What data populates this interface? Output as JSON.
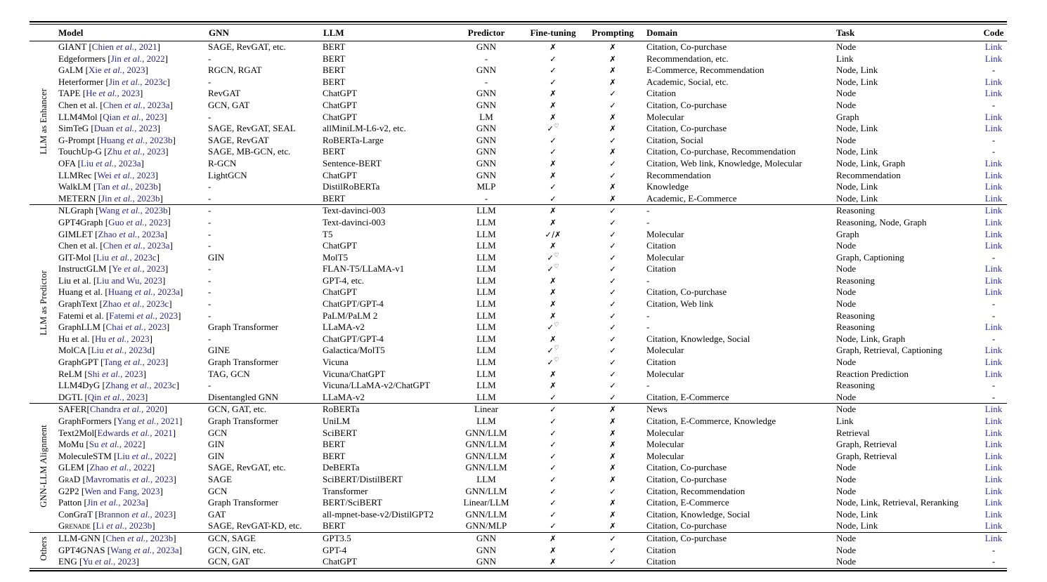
{
  "colors": {
    "citation_text": "#26268E",
    "code_link_text": "#2A2AC8",
    "body_text": "#000000",
    "background": "#ffffff"
  },
  "glyphs": {
    "check": "✓",
    "cross": "✗",
    "heart_superscript": "♡"
  },
  "table": {
    "headers": [
      "Model",
      "GNN",
      "LLM",
      "Predictor",
      "Fine-tuning",
      "Prompting",
      "Domain",
      "Task",
      "Code"
    ],
    "header_align": [
      "l",
      "l",
      "l",
      "c",
      "c",
      "c",
      "l",
      "l",
      "c"
    ],
    "sections": [
      {
        "group": "LLM as Enhancer",
        "rows": [
          {
            "model": "GIANT",
            "cite": "Chien et al., 2021",
            "gnn": "SAGE, RevGAT, etc.",
            "llm": "BERT",
            "predictor": "GNN",
            "fine_tuning": "✗",
            "prompting": "✗",
            "domain": "Citation, Co-purchase",
            "task": "Node",
            "code": "Link"
          },
          {
            "model": "Edgeformers",
            "cite": "Jin et al., 2022",
            "gnn": "-",
            "llm": "BERT",
            "predictor": "-",
            "fine_tuning": "✓",
            "prompting": "✗",
            "domain": "Recommendation, etc.",
            "task": "Link",
            "code": "Link"
          },
          {
            "model": "GaLM",
            "sc": true,
            "cite": "Xie et al., 2023",
            "gnn": "RGCN, RGAT",
            "llm": "BERT",
            "predictor": "GNN",
            "fine_tuning": "✓",
            "prompting": "✗",
            "domain": "E-Commerce, Recommendation",
            "task": "Node, Link",
            "code": "-"
          },
          {
            "model": "Heterformer",
            "cite": "Jin et al., 2023c",
            "gnn": "-",
            "llm": "BERT",
            "predictor": "-",
            "fine_tuning": "✓",
            "prompting": "✗",
            "domain": "Academic, Social, etc.",
            "task": "Node, Link",
            "code": "Link"
          },
          {
            "model": "TAPE",
            "cite": "He et al., 2023",
            "gnn": "RevGAT",
            "llm": "ChatGPT",
            "predictor": "GNN",
            "fine_tuning": "✗",
            "prompting": "✓",
            "domain": "Citation",
            "task": "Node",
            "code": "Link"
          },
          {
            "model": "Chen et al.",
            "cite": "Chen et al., 2023a",
            "gnn": "GCN, GAT",
            "llm": "ChatGPT",
            "predictor": "GNN",
            "fine_tuning": "✗",
            "prompting": "✓",
            "domain": "Citation, Co-purchase",
            "task": "Node",
            "code": "-"
          },
          {
            "model": "LLM4Mol",
            "cite": "Qian et al., 2023",
            "gnn": "-",
            "llm": "ChatGPT",
            "predictor": "LM",
            "fine_tuning": "✗",
            "prompting": "✗",
            "domain": "Molecular",
            "task": "Graph",
            "code": "Link"
          },
          {
            "model": "SimTeG",
            "cite": "Duan et al., 2023",
            "gnn": "SAGE, RevGAT, SEAL",
            "llm": "allMiniLM-L6-v2, etc.",
            "predictor": "GNN",
            "fine_tuning": "✓♡",
            "prompting": "✗",
            "domain": "Citation, Co-purchase",
            "task": "Node, Link",
            "code": "Link"
          },
          {
            "model": "G-Prompt",
            "cite": "Huang et al., 2023b",
            "gnn": "SAGE, RevGAT",
            "llm": "RoBERTa-Large",
            "predictor": "GNN",
            "fine_tuning": "✓",
            "prompting": "✓",
            "domain": "Citation, Social",
            "task": "Node",
            "code": "-"
          },
          {
            "model": "TouchUp-G",
            "cite": "Zhu et al., 2023",
            "gnn": "SAGE, MB-GCN, etc.",
            "llm": "BERT",
            "predictor": "GNN",
            "fine_tuning": "✓",
            "prompting": "✗",
            "domain": "Citation, Co-purchase, Recommendation",
            "task": "Node, Link",
            "code": "-"
          },
          {
            "model": "OFA",
            "cite": "Liu et al., 2023a",
            "gnn": "R-GCN",
            "llm": "Sentence-BERT",
            "predictor": "GNN",
            "fine_tuning": "✗",
            "prompting": "✓",
            "domain": "Citation, Web link, Knowledge, Molecular",
            "task": "Node, Link, Graph",
            "code": "Link"
          },
          {
            "model": "LLMRec",
            "cite": "Wei et al., 2023",
            "gnn": "LightGCN",
            "llm": "ChatGPT",
            "predictor": "GNN",
            "fine_tuning": "✗",
            "prompting": "✓",
            "domain": "Recommendation",
            "task": "Recommendation",
            "code": "Link"
          },
          {
            "model": "WalkLM",
            "cite": "Tan et al., 2023b",
            "gnn": "-",
            "llm": "DistilRoBERTa",
            "predictor": "MLP",
            "fine_tuning": "✓",
            "prompting": "✗",
            "domain": "Knowledge",
            "task": "Node, Link",
            "code": "Link"
          },
          {
            "model": "METERN",
            "cite": "Jin et al., 2023b",
            "gnn": "-",
            "llm": "BERT",
            "predictor": "-",
            "fine_tuning": "✓",
            "prompting": "✗",
            "domain": "Academic, E-Commerce",
            "task": "Node, Link",
            "code": "Link"
          }
        ]
      },
      {
        "group": "LLM as Predictor",
        "rows": [
          {
            "model": "NLGraph",
            "cite": "Wang et al., 2023b",
            "gnn": "-",
            "llm": "Text-davinci-003",
            "predictor": "LLM",
            "fine_tuning": "✗",
            "prompting": "✓",
            "domain": "-",
            "task": "Reasoning",
            "code": "Link"
          },
          {
            "model": "GPT4Graph",
            "cite": "Guo et al., 2023",
            "gnn": "-",
            "llm": "Text-davinci-003",
            "predictor": "LLM",
            "fine_tuning": "✗",
            "prompting": "✓",
            "domain": "-",
            "task": "Reasoning, Node, Graph",
            "code": "Link"
          },
          {
            "model": "GIMLET",
            "cite": "Zhao et al., 2023a",
            "gnn": "-",
            "llm": "T5",
            "predictor": "LLM",
            "fine_tuning": "✓/✗",
            "prompting": "✓",
            "domain": "Molecular",
            "task": "Graph",
            "code": "Link"
          },
          {
            "model": "Chen et al.",
            "cite": "Chen et al., 2023a",
            "gnn": "-",
            "llm": "ChatGPT",
            "predictor": "LLM",
            "fine_tuning": "✗",
            "prompting": "✓",
            "domain": "Citation",
            "task": "Node",
            "code": "Link"
          },
          {
            "model": "GIT-Mol",
            "cite": "Liu et al., 2023c",
            "gnn": "GIN",
            "llm": "MolT5",
            "predictor": "LLM",
            "fine_tuning": "✓♡",
            "prompting": "✓",
            "domain": "Molecular",
            "task": "Graph, Captioning",
            "code": "-"
          },
          {
            "model": "InstructGLM",
            "cite": "Ye et al., 2023",
            "gnn": "-",
            "llm": "FLAN-T5/LLaMA-v1",
            "predictor": "LLM",
            "fine_tuning": "✓♡",
            "prompting": "✓",
            "domain": "Citation",
            "task": "Node",
            "code": "Link"
          },
          {
            "model": "Liu et al.",
            "cite": "Liu and Wu, 2023",
            "gnn": "-",
            "llm": "GPT-4, etc.",
            "predictor": "LLM",
            "fine_tuning": "✗",
            "prompting": "✓",
            "domain": "-",
            "task": "Reasoning",
            "code": "Link"
          },
          {
            "model": "Huang et al.",
            "cite": "Huang et al., 2023a",
            "gnn": "-",
            "llm": "ChatGPT",
            "predictor": "LLM",
            "fine_tuning": "✗",
            "prompting": "✓",
            "domain": "Citation, Co-purchase",
            "task": "Node",
            "code": "Link"
          },
          {
            "model": "GraphText",
            "cite": "Zhao et al., 2023c",
            "gnn": "-",
            "llm": "ChatGPT/GPT-4",
            "predictor": "LLM",
            "fine_tuning": "✗",
            "prompting": "✓",
            "domain": "Citation, Web link",
            "task": "Node",
            "code": "-"
          },
          {
            "model": "Fatemi et al.",
            "cite": "Fatemi et al., 2023",
            "gnn": "-",
            "llm": "PaLM/PaLM 2",
            "predictor": "LLM",
            "fine_tuning": "✗",
            "prompting": "✓",
            "domain": "-",
            "task": "Reasoning",
            "code": "-"
          },
          {
            "model": "GraphLLM",
            "cite": "Chai et al., 2023",
            "gnn": "Graph Transformer",
            "llm": "LLaMA-v2",
            "predictor": "LLM",
            "fine_tuning": "✓♡",
            "prompting": "✓",
            "domain": "-",
            "task": "Reasoning",
            "code": "Link"
          },
          {
            "model": "Hu et al.",
            "cite": "Hu et al., 2023",
            "gnn": "-",
            "llm": "ChatGPT/GPT-4",
            "predictor": "LLM",
            "fine_tuning": "✗",
            "prompting": "✓",
            "domain": "Citation, Knowledge, Social",
            "task": "Node, Link, Graph",
            "code": "-"
          },
          {
            "model": "MolCA",
            "cite": "Liu et al., 2023d",
            "gnn": "GINE",
            "llm": "Galactica/MolT5",
            "predictor": "LLM",
            "fine_tuning": "✓♡",
            "prompting": "✓",
            "domain": "Molecular",
            "task": "Graph, Retrieval, Captioning",
            "code": "Link"
          },
          {
            "model": "GraphGPT",
            "cite": "Tang et al., 2023",
            "gnn": "Graph Transformer",
            "llm": "Vicuna",
            "predictor": "LLM",
            "fine_tuning": "✓♡",
            "prompting": "✓",
            "domain": "Citation",
            "task": "Node",
            "code": "Link"
          },
          {
            "model": "ReLM",
            "cite": "Shi et al., 2023",
            "gnn": "TAG, GCN",
            "llm": "Vicuna/ChatGPT",
            "predictor": "LLM",
            "fine_tuning": "✗",
            "prompting": "✓",
            "domain": "Molecular",
            "task": "Reaction Prediction",
            "code": "Link"
          },
          {
            "model": "LLM4DyG",
            "cite": "Zhang et al., 2023c",
            "gnn": "-",
            "llm": "Vicuna/LLaMA-v2/ChatGPT",
            "predictor": "LLM",
            "fine_tuning": "✗",
            "prompting": "✓",
            "domain": "-",
            "task": "Reasoning",
            "code": "-"
          },
          {
            "model": "DGTL",
            "cite": "Qin et al., 2023",
            "gnn": "Disentangled GNN",
            "llm": "LLaMA-v2",
            "predictor": "LLM",
            "fine_tuning": "✓",
            "prompting": "✓",
            "domain": "Citation, E-Commerce",
            "task": "Node",
            "code": "-"
          }
        ]
      },
      {
        "group": "GNN-LLM Alignment",
        "rows": [
          {
            "model": "SAFER",
            "tight": true,
            "cite": "Chandra et al., 2020",
            "gnn": "GCN, GAT, etc.",
            "llm": "RoBERTa",
            "predictor": "Linear",
            "fine_tuning": "✓",
            "prompting": "✗",
            "domain": "News",
            "task": "Node",
            "code": "Link"
          },
          {
            "model": "GraphFormers",
            "cite": "Yang et al., 2021",
            "gnn": "Graph Transformer",
            "llm": "UniLM",
            "predictor": "LLM",
            "fine_tuning": "✓",
            "prompting": "✗",
            "domain": "Citation, E-Commerce, Knowledge",
            "task": "Link",
            "code": "Link"
          },
          {
            "model": "Text2Mol",
            "tight": true,
            "cite": "Edwards et al., 2021",
            "gnn": "GCN",
            "llm": "SciBERT",
            "predictor": "GNN/LLM",
            "fine_tuning": "✓",
            "prompting": "✗",
            "domain": "Molecular",
            "task": "Retrieval",
            "code": "Link"
          },
          {
            "model": "MoMu",
            "cite": "Su et al., 2022",
            "gnn": "GIN",
            "llm": "BERT",
            "predictor": "GNN/LLM",
            "fine_tuning": "✓",
            "prompting": "✗",
            "domain": "Molecular",
            "task": "Graph, Retrieval",
            "code": "Link"
          },
          {
            "model": "MoleculeSTM",
            "cite": "Liu et al., 2022",
            "gnn": "GIN",
            "llm": "BERT",
            "predictor": "GNN/LLM",
            "fine_tuning": "✓",
            "prompting": "✗",
            "domain": "Molecular",
            "task": "Graph, Retrieval",
            "code": "Link"
          },
          {
            "model": "GLEM",
            "cite": "Zhao et al., 2022",
            "gnn": "SAGE, RevGAT, etc.",
            "llm": "DeBERTa",
            "predictor": "GNN/LLM",
            "fine_tuning": "✓",
            "prompting": "✗",
            "domain": "Citation, Co-purchase",
            "task": "Node",
            "code": "Link"
          },
          {
            "model": "GraD",
            "sc": true,
            "cite": "Mavromatis et al., 2023",
            "gnn": "SAGE",
            "llm": "SciBERT/DistilBERT",
            "predictor": "LLM",
            "fine_tuning": "✓",
            "prompting": "✗",
            "domain": "Citation, Co-purchase",
            "task": "Node",
            "code": "Link"
          },
          {
            "model": "G2P2",
            "cite": "Wen and Fang, 2023",
            "gnn": "GCN",
            "llm": "Transformer",
            "predictor": "GNN/LLM",
            "fine_tuning": "✓",
            "prompting": "✓",
            "domain": "Citation, Recommendation",
            "task": "Node",
            "code": "Link"
          },
          {
            "model": "Patton",
            "cite": "Jin et al., 2023a",
            "gnn": "Graph Transformer",
            "llm": "BERT/SciBERT",
            "predictor": "Linear/LLM",
            "fine_tuning": "✓",
            "prompting": "✗",
            "domain": "Citation, E-Commerce",
            "task": "Node, Link, Retrieval, Reranking",
            "code": "Link"
          },
          {
            "model": "ConGraT",
            "cite": "Brannon et al., 2023",
            "gnn": "GAT",
            "llm": "all-mpnet-base-v2/DistilGPT2",
            "predictor": "GNN/LLM",
            "fine_tuning": "✓",
            "prompting": "✗",
            "domain": "Citation, Knowledge, Social",
            "task": "Node, Link",
            "code": "Link"
          },
          {
            "model": "Grenade",
            "sc": true,
            "cite": "Li et al., 2023b",
            "gnn": "SAGE, RevGAT-KD, etc.",
            "llm": "BERT",
            "predictor": "GNN/MLP",
            "fine_tuning": "✓",
            "prompting": "✗",
            "domain": "Citation, Co-purchase",
            "task": "Node, Link",
            "code": "Link"
          }
        ]
      },
      {
        "group": "Others",
        "rows": [
          {
            "model": "LLM-GNN",
            "cite": "Chen et al., 2023b",
            "gnn": "GCN, SAGE",
            "llm": "GPT3.5",
            "predictor": "GNN",
            "fine_tuning": "✗",
            "prompting": "✓",
            "domain": "Citation, Co-purchase",
            "task": "Node",
            "code": "Link"
          },
          {
            "model": "GPT4GNAS",
            "cite": "Wang et al., 2023a",
            "gnn": "GCN, GIN, etc.",
            "llm": "GPT-4",
            "predictor": "GNN",
            "fine_tuning": "✗",
            "prompting": "✓",
            "domain": "Citation",
            "task": "Node",
            "code": "-"
          },
          {
            "model": "ENG",
            "cite": "Yu et al., 2023",
            "gnn": "GCN, GAT",
            "llm": "ChatGPT",
            "predictor": "GNN",
            "fine_tuning": "✗",
            "prompting": "✓",
            "domain": "Citation",
            "task": "Node",
            "code": "-"
          }
        ]
      }
    ]
  }
}
